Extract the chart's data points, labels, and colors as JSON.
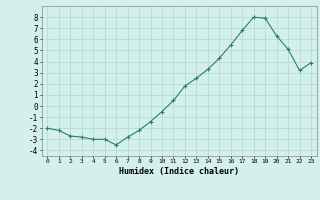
{
  "x": [
    0,
    1,
    2,
    3,
    4,
    5,
    6,
    7,
    8,
    9,
    10,
    11,
    12,
    13,
    14,
    15,
    16,
    17,
    18,
    19,
    20,
    21,
    22,
    23
  ],
  "y": [
    -2,
    -2.2,
    -2.7,
    -2.8,
    -3.0,
    -3.0,
    -3.5,
    -2.8,
    -2.2,
    -1.4,
    -0.5,
    0.5,
    1.8,
    2.5,
    3.3,
    4.3,
    5.5,
    6.8,
    8.0,
    7.9,
    6.3,
    5.1,
    3.2,
    3.9
  ],
  "xlabel": "Humidex (Indice chaleur)",
  "xticks": [
    0,
    1,
    2,
    3,
    4,
    5,
    6,
    7,
    8,
    9,
    10,
    11,
    12,
    13,
    14,
    15,
    16,
    17,
    18,
    19,
    20,
    21,
    22,
    23
  ],
  "yticks": [
    -4,
    -3,
    -2,
    -1,
    0,
    1,
    2,
    3,
    4,
    5,
    6,
    7,
    8
  ],
  "ylim": [
    -4.5,
    9.0
  ],
  "xlim": [
    -0.5,
    23.5
  ],
  "line_color": "#2d7d6e",
  "marker": "+",
  "marker_size": 3,
  "background_color": "#d4f0ed",
  "grid_color": "#b0d8d4",
  "title": ""
}
